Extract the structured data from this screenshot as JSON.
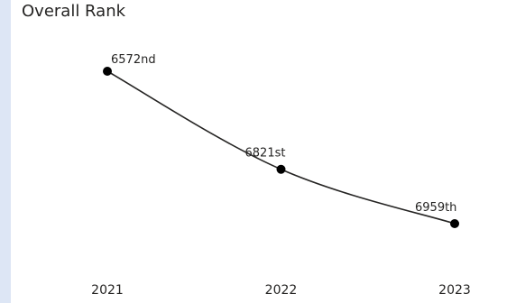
{
  "chart_data": {
    "type": "line",
    "title": "Overall Rank",
    "xlabel": "",
    "ylabel": "",
    "categories": [
      "2021",
      "2022",
      "2023"
    ],
    "values": [
      6572,
      6821,
      6959
    ],
    "data_labels": [
      "6572nd",
      "6821st",
      "6959th"
    ],
    "y_inverted": true,
    "grid": false,
    "legend": "none",
    "colors": {
      "line": "#252423",
      "marker": "#000000",
      "text": "#252423",
      "left_band": "#dde6f5"
    }
  }
}
